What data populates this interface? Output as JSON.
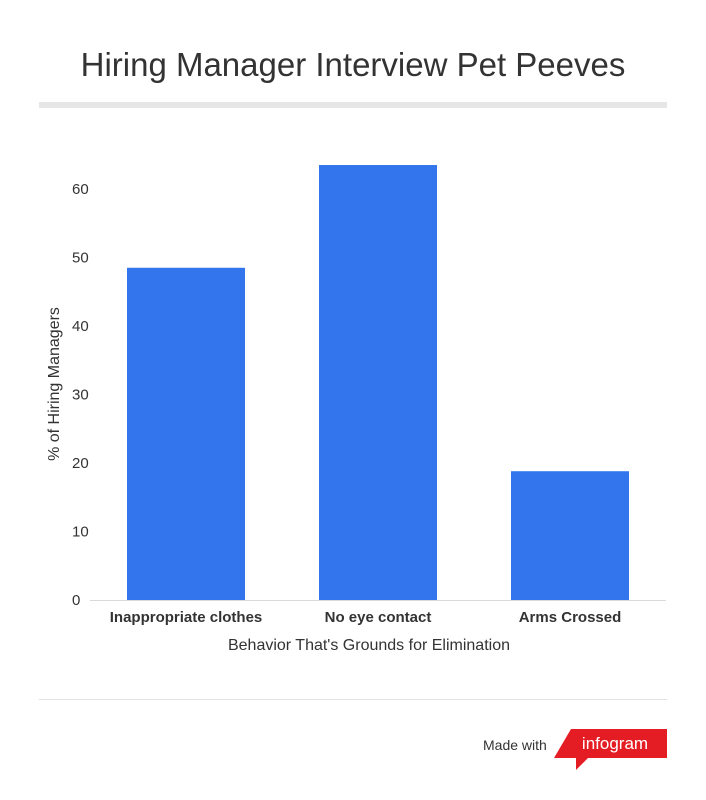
{
  "title": "Hiring Manager Interview Pet Peeves",
  "footer": {
    "made_with": "Made with",
    "brand": "infogram"
  },
  "colors": {
    "bar": "#3275ec",
    "axis_text": "#333333",
    "brand_red": "#e41d25",
    "baseline": "#d9d9d9"
  },
  "chart_data": {
    "type": "bar",
    "categories": [
      "Inappropriate clothes",
      "No eye contact",
      "Arms Crossed"
    ],
    "values": [
      48.5,
      63.5,
      18.8
    ],
    "xlabel": "Behavior That's Grounds for Elimination",
    "ylabel": "% of Hiring Managers",
    "ylim": [
      0,
      65
    ],
    "yticks": [
      0,
      10,
      20,
      30,
      40,
      50,
      60
    ],
    "grid": false,
    "legend": "none"
  }
}
